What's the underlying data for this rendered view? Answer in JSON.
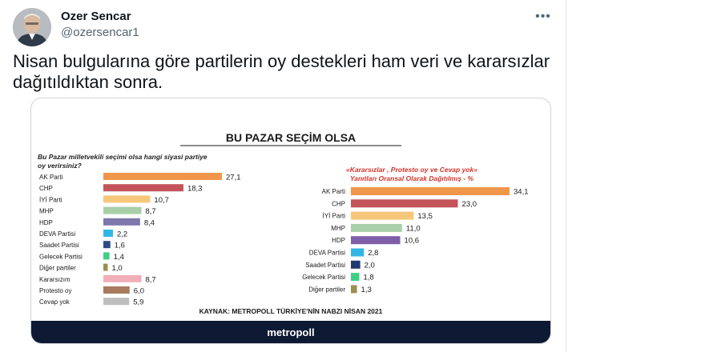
{
  "tweet": {
    "author_name": "Ozer Sencar",
    "author_handle": "@ozersencar1",
    "text": "Nisan bulgularına göre partilerin oy destekleri ham veri ve kararsızlar dağıtıldıktan sonra."
  },
  "poll_image": {
    "title": "BU PAZAR SEÇİM OLSA",
    "left_question": "Bu Pazar milletvekili seçimi olsa hangi siyasi partiye oy verirsiniz?",
    "left_question_lines": [
      "Bu Pazar milletvekili seçimi olsa hangi siyasi partiye",
      "oy verirsiniz?"
    ],
    "right_note_lines": [
      "«Kararsızlar , Protesto oy ve Cevap yok»",
      "Yanıtları Oransal Olarak Dağıtılmış - %"
    ],
    "source": "KAYNAK: METROPOLL TÜRKİYE'NİN NABZI NİSAN 2021",
    "footer_brand": "metropoll"
  },
  "chart_data": [
    {
      "type": "bar",
      "orientation": "horizontal",
      "categories": [
        "AK Parti",
        "CHP",
        "İYİ Parti",
        "MHP",
        "HDP",
        "DEVA Partisi",
        "Saadet Partisi",
        "Gelecek Partisi",
        "Diğer partiler",
        "Kararsızım",
        "Protesto oy",
        "Cevap yok"
      ],
      "values": [
        27.1,
        18.3,
        10.7,
        8.7,
        8.4,
        2.2,
        1.6,
        1.4,
        1.0,
        8.7,
        6.0,
        5.9
      ],
      "value_labels": [
        "27,1",
        "18,3",
        "10,7",
        "8,7",
        "8,4",
        "2,2",
        "1,6",
        "1,4",
        "1,0",
        "8,7",
        "6,0",
        "5,9"
      ],
      "colors": [
        "#f0964a",
        "#c4545a",
        "#f6c77a",
        "#a9cfa9",
        "#7e78ad",
        "#33b6e6",
        "#2e4a86",
        "#3ecf86",
        "#9b8f50",
        "#f2aeb8",
        "#a87a5e",
        "#bdbdbd"
      ]
    },
    {
      "type": "bar",
      "orientation": "horizontal",
      "categories": [
        "AK Parti",
        "CHP",
        "İYİ Parti",
        "MHP",
        "HDP",
        "DEVA Partisi",
        "Saadet Partisi",
        "Gelecek Partisi",
        "Diğer partiler"
      ],
      "values": [
        34.1,
        23.0,
        13.5,
        11.0,
        10.6,
        2.8,
        2.0,
        1.8,
        1.3
      ],
      "value_labels": [
        "34,1",
        "23,0",
        "13,5",
        "11,0",
        "10,6",
        "2,8",
        "2,0",
        "1,8",
        "1,3"
      ],
      "colors": [
        "#f0964a",
        "#c4545a",
        "#f6c77a",
        "#a9cfa9",
        "#7e5fa8",
        "#33b6e6",
        "#1f3a6e",
        "#3ecf86",
        "#9b8f50"
      ]
    }
  ]
}
